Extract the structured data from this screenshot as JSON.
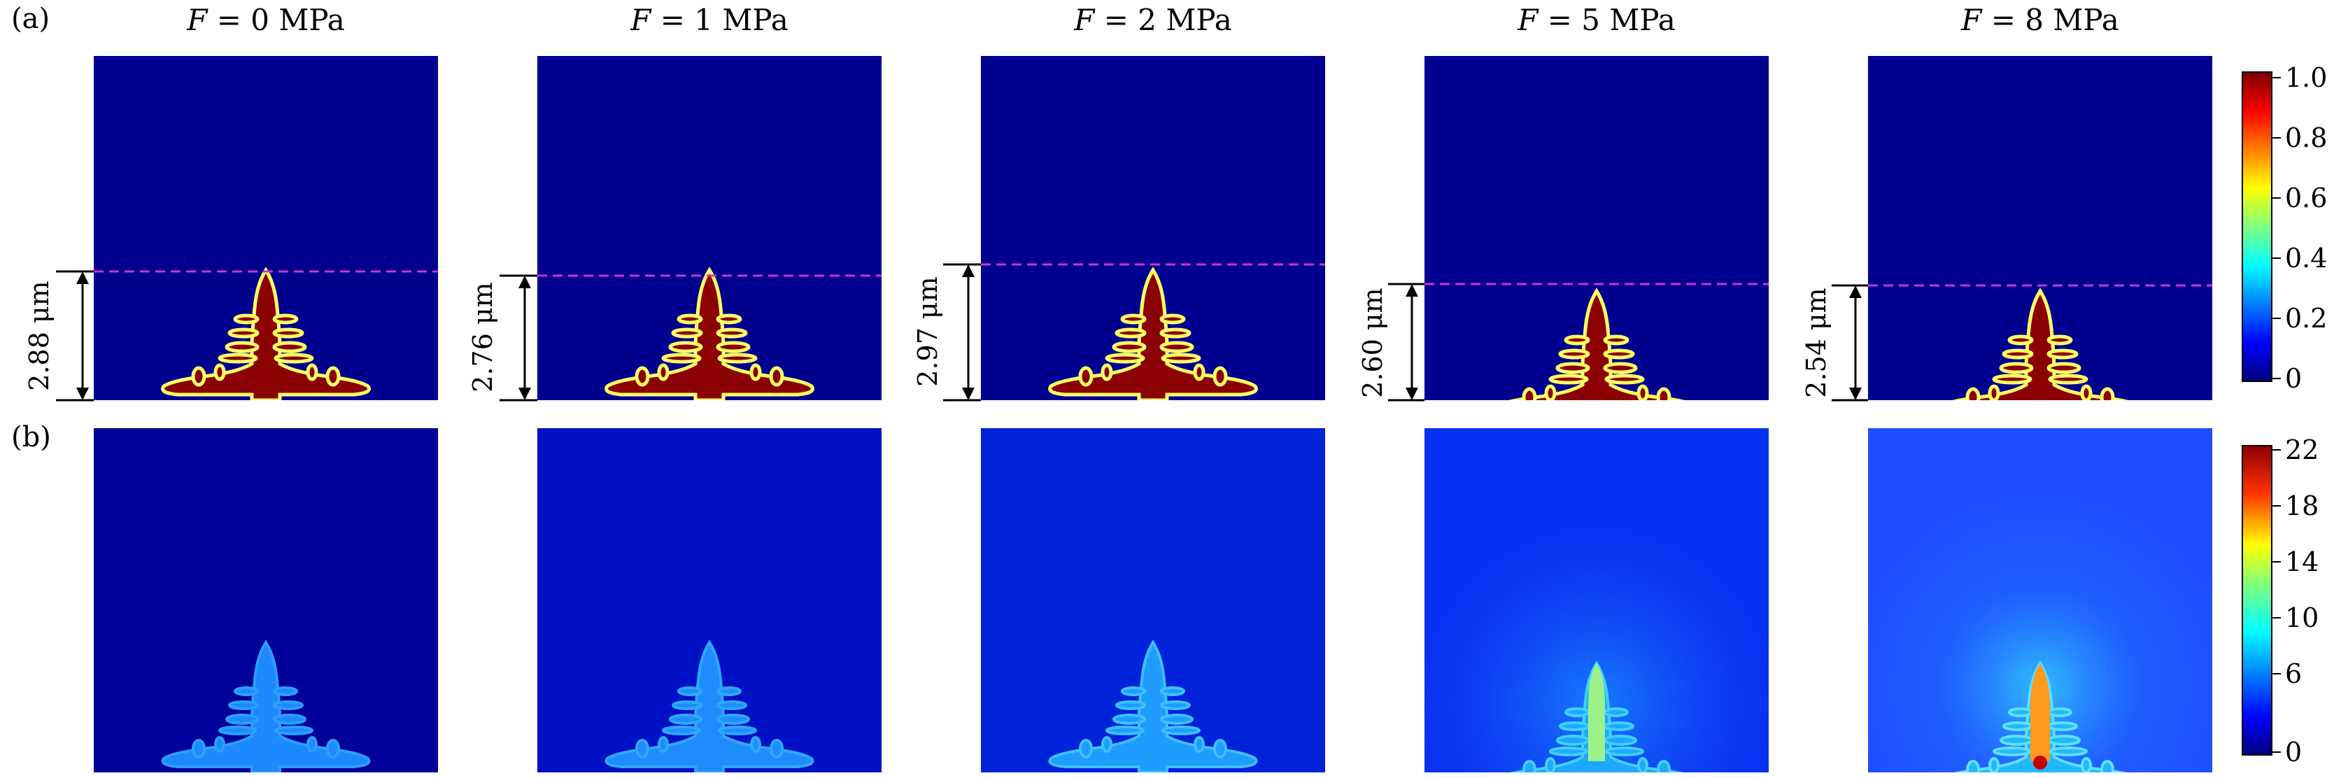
{
  "figure": {
    "row_labels": {
      "a": "(a)",
      "b": "(b)"
    },
    "column_titles": [
      {
        "var": "F",
        "eq": " = 0 MPa"
      },
      {
        "var": "F",
        "eq": " = 1 MPa"
      },
      {
        "var": "F",
        "eq": " = 2 MPa"
      },
      {
        "var": "F",
        "eq": " = 5 MPa"
      },
      {
        "var": "F",
        "eq": " = 8 MPa"
      }
    ],
    "measurements": [
      "2.88 μm",
      "2.76 μm",
      "2.97 μm",
      "2.60 μm",
      "2.54 μm"
    ],
    "colorbar_a": {
      "ticks": [
        "1.0",
        "0.8",
        "0.6",
        "0.4",
        "0.2",
        "0"
      ],
      "range": [
        0,
        1
      ]
    },
    "colorbar_b": {
      "ticks": [
        "22",
        "18",
        "14",
        "10",
        "6",
        "0"
      ]
    },
    "colors": {
      "background_a": "#00008f",
      "dendrite": "#8b0000",
      "guide_line": "#cc33cc"
    }
  }
}
